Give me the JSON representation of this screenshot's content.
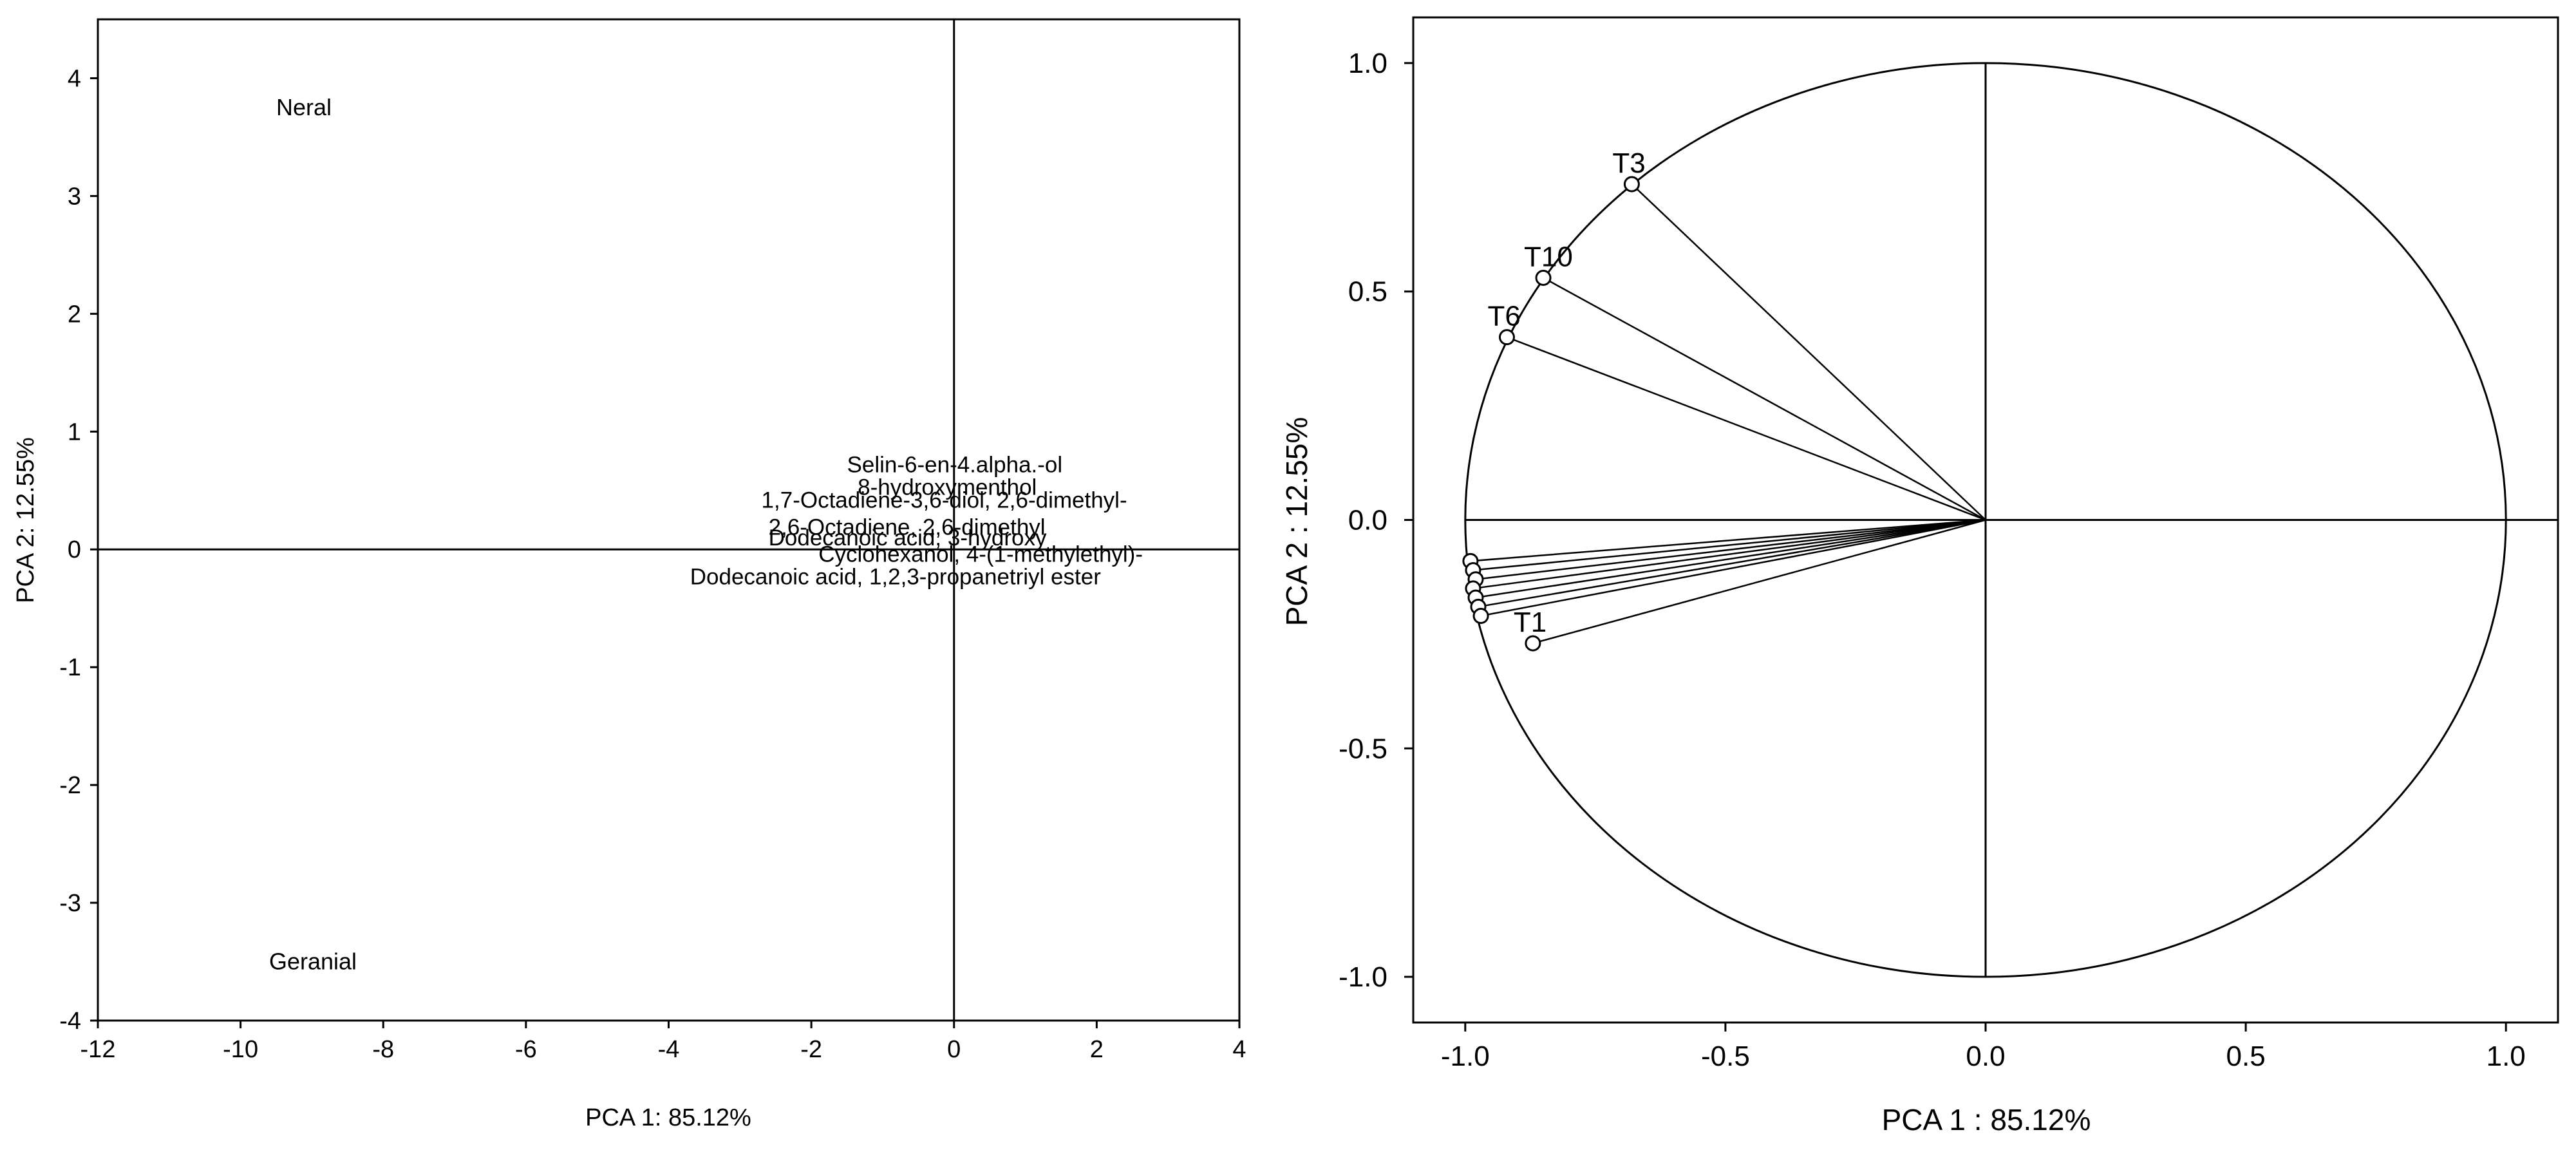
{
  "chart_data": [
    {
      "type": "scatter",
      "title": "",
      "xlabel": "PCA 1: 85.12%",
      "ylabel": "PCA 2: 12.55%",
      "xlim": [
        -12,
        4
      ],
      "ylim": [
        -4,
        4.5
      ],
      "xticks": [
        "-12",
        "-10",
        "-8",
        "-6",
        "-4",
        "-2",
        "0",
        "2",
        "4"
      ],
      "yticks": [
        "-4",
        "-3",
        "-2",
        "-1",
        "0",
        "1",
        "2",
        "3",
        "4"
      ],
      "points": [
        {
          "label": "Neral",
          "x": -9.5,
          "y": 3.75
        },
        {
          "label": "Geranial",
          "x": -9.6,
          "y": -3.5
        }
      ],
      "cluster_labels": [
        {
          "label": "Selin-6-en-4.alpha.-ol",
          "x": -1.5,
          "y": 0.72
        },
        {
          "label": "8-hydroxymenthol",
          "x": -1.35,
          "y": 0.53
        },
        {
          "label": "1,7-Octadiene-3,6-diol, 2,6-dimethyl-",
          "x": -2.7,
          "y": 0.42
        },
        {
          "label": "2,6-Octadiene, 2,6-dimethyl",
          "x": -2.6,
          "y": 0.19
        },
        {
          "label": "Dodecanoic acid, 3-hydroxy",
          "x": -2.6,
          "y": 0.1
        },
        {
          "label": "Cyclohexanol, 4-(1-methylethyl)-",
          "x": -1.9,
          "y": -0.04
        },
        {
          "label": "Dodecanoic acid, 1,2,3-propanetriyl ester",
          "x": -3.7,
          "y": -0.23
        }
      ],
      "grid": false
    },
    {
      "type": "scatter",
      "title": "",
      "xlabel": "PCA 1 : 85.12%",
      "ylabel": "PCA 2 : 12.55%",
      "xlim": [
        -1.1,
        1.1
      ],
      "ylim": [
        -1.1,
        1.1
      ],
      "xticks": [
        "-1.0",
        "-0.5",
        "0.0",
        "0.5",
        "1.0"
      ],
      "yticks": [
        "-1.0",
        "-0.5",
        "0.0",
        "0.5",
        "1.0"
      ],
      "unit_circle": true,
      "points": [
        {
          "label": "T3",
          "x": -0.68,
          "y": 0.735
        },
        {
          "label": "T10",
          "x": -0.85,
          "y": 0.53
        },
        {
          "label": "T6",
          "x": -0.92,
          "y": 0.4
        },
        {
          "label": "T1",
          "x": -0.87,
          "y": -0.27
        },
        {
          "label": "",
          "x": -0.99,
          "y": -0.09
        },
        {
          "label": "",
          "x": -0.985,
          "y": -0.11
        },
        {
          "label": "",
          "x": -0.98,
          "y": -0.13
        },
        {
          "label": "",
          "x": -0.985,
          "y": -0.15
        },
        {
          "label": "",
          "x": -0.98,
          "y": -0.17
        },
        {
          "label": "",
          "x": -0.975,
          "y": -0.19
        },
        {
          "label": "",
          "x": -0.97,
          "y": -0.21
        }
      ],
      "grid": false
    }
  ]
}
